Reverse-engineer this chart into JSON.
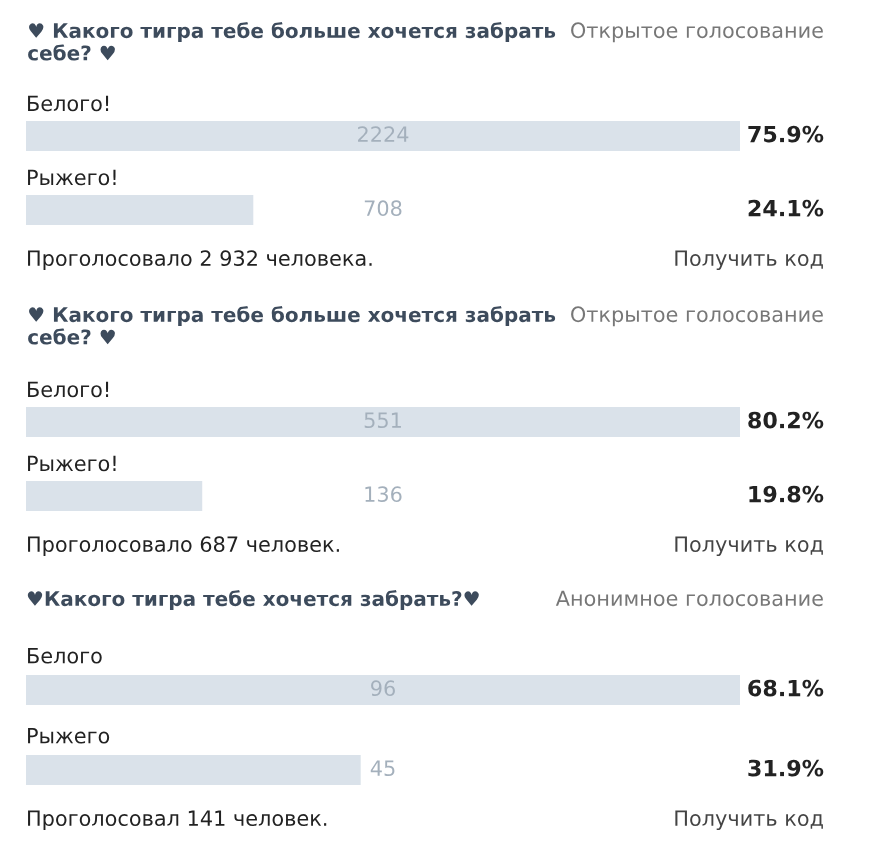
{
  "chart_data": [
    {
      "type": "bar",
      "orientation": "horizontal",
      "title": "♥ Какого тигра тебе больше хочется забрать себе? ♥",
      "subtitle": "Открытое голосование",
      "categories": [
        "Белого!",
        "Рыжего!"
      ],
      "values": [
        2224,
        708
      ],
      "color": "#dae2ea",
      "data_labels": true,
      "annotations": [
        "75.9%",
        "24.1%",
        "Проголосовало 2 932 человека.",
        "Получить код"
      ]
    },
    {
      "type": "bar",
      "orientation": "horizontal",
      "title": "♥ Какого тигра тебе больше хочется забрать себе? ♥",
      "subtitle": "Открытое голосование",
      "categories": [
        "Белого!",
        "Рыжего!"
      ],
      "values": [
        551,
        136
      ],
      "color": "#dae2ea",
      "data_labels": true,
      "annotations": [
        "80.2%",
        "19.8%",
        "Проголосовало 687 человек.",
        "Получить код"
      ]
    },
    {
      "type": "bar",
      "orientation": "horizontal",
      "title": "♥Какого тигра тебе хочется забрать?♥",
      "subtitle": "Анонимное голосование",
      "categories": [
        "Белого",
        "Рыжего"
      ],
      "values": [
        96,
        45
      ],
      "color": "#dae2ea",
      "data_labels": true,
      "annotations": [
        "68.1%",
        "31.9%",
        "Проголосовал 141 человек.",
        "Получить код"
      ]
    }
  ]
}
